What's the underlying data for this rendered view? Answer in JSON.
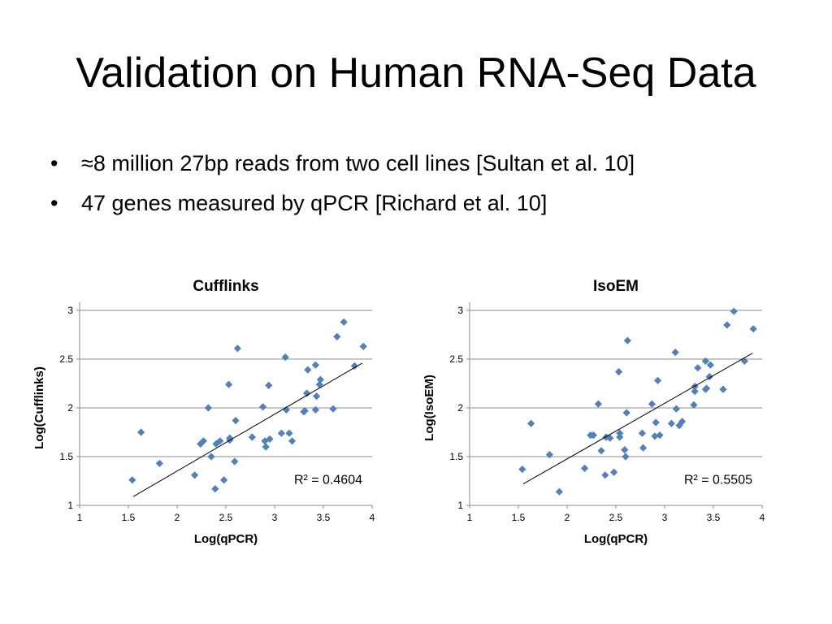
{
  "slide": {
    "title": "Validation on Human RNA-Seq Data",
    "bullets": [
      "≈8 million 27bp reads from two cell lines [Sultan et al. 10]",
      "47 genes measured by qPCR [Richard et al. 10]"
    ]
  },
  "chart_data": [
    {
      "type": "scatter",
      "title": "Cufflinks",
      "xlabel": "Log(qPCR)",
      "ylabel": "Log(Cufflinks)",
      "xlim": [
        1,
        4
      ],
      "ylim": [
        1,
        3
      ],
      "xticks": [
        "1",
        "1.5",
        "2",
        "2.5",
        "3",
        "3.5",
        "4"
      ],
      "yticks": [
        "1",
        "1.5",
        "2",
        "2.5",
        "3"
      ],
      "grid": "horizontal",
      "marker_color": "#4F81BD",
      "r2_label": "R² = 0.4604",
      "trendline": [
        [
          1.55,
          1.09
        ],
        [
          3.9,
          2.46
        ]
      ],
      "points": [
        [
          1.54,
          1.26
        ],
        [
          1.63,
          1.75
        ],
        [
          1.82,
          1.43
        ],
        [
          2.18,
          1.31
        ],
        [
          2.24,
          1.63
        ],
        [
          2.27,
          1.66
        ],
        [
          2.32,
          2.0
        ],
        [
          2.35,
          1.5
        ],
        [
          2.39,
          1.17
        ],
        [
          2.4,
          1.63
        ],
        [
          2.44,
          1.66
        ],
        [
          2.48,
          1.26
        ],
        [
          2.53,
          2.24
        ],
        [
          2.54,
          1.69
        ],
        [
          2.54,
          1.67
        ],
        [
          2.59,
          1.45
        ],
        [
          2.6,
          1.87
        ],
        [
          2.62,
          2.61
        ],
        [
          2.77,
          1.7
        ],
        [
          2.88,
          2.01
        ],
        [
          2.9,
          1.66
        ],
        [
          2.91,
          1.6
        ],
        [
          2.94,
          2.23
        ],
        [
          2.95,
          1.68
        ],
        [
          3.07,
          1.74
        ],
        [
          3.11,
          2.52
        ],
        [
          3.12,
          1.98
        ],
        [
          3.15,
          1.74
        ],
        [
          3.18,
          1.66
        ],
        [
          3.3,
          1.96
        ],
        [
          3.31,
          1.97
        ],
        [
          3.33,
          2.15
        ],
        [
          3.34,
          2.39
        ],
        [
          3.42,
          1.98
        ],
        [
          3.42,
          2.44
        ],
        [
          3.43,
          2.12
        ],
        [
          3.46,
          2.24
        ],
        [
          3.47,
          2.29
        ],
        [
          3.6,
          1.99
        ],
        [
          3.64,
          2.73
        ],
        [
          3.71,
          2.88
        ],
        [
          3.82,
          2.43
        ],
        [
          3.91,
          2.63
        ]
      ]
    },
    {
      "type": "scatter",
      "title": "IsoEM",
      "xlabel": "Log(qPCR)",
      "ylabel": "Log(IsoEM)",
      "xlim": [
        1,
        4
      ],
      "ylim": [
        1,
        3
      ],
      "xticks": [
        "1",
        "1.5",
        "2",
        "2.5",
        "3",
        "3.5",
        "4"
      ],
      "yticks": [
        "1",
        "1.5",
        "2",
        "2.5",
        "3"
      ],
      "grid": "horizontal",
      "marker_color": "#4F81BD",
      "r2_label": "R² = 0.5505",
      "trendline": [
        [
          1.55,
          1.22
        ],
        [
          3.9,
          2.56
        ]
      ],
      "points": [
        [
          1.54,
          1.37
        ],
        [
          1.63,
          1.84
        ],
        [
          1.82,
          1.52
        ],
        [
          1.92,
          1.14
        ],
        [
          2.18,
          1.38
        ],
        [
          2.24,
          1.72
        ],
        [
          2.27,
          1.72
        ],
        [
          2.32,
          2.04
        ],
        [
          2.35,
          1.56
        ],
        [
          2.39,
          1.31
        ],
        [
          2.4,
          1.7
        ],
        [
          2.44,
          1.69
        ],
        [
          2.48,
          1.34
        ],
        [
          2.53,
          2.37
        ],
        [
          2.54,
          1.7
        ],
        [
          2.54,
          1.74
        ],
        [
          2.59,
          1.57
        ],
        [
          2.6,
          1.5
        ],
        [
          2.61,
          1.95
        ],
        [
          2.62,
          2.69
        ],
        [
          2.77,
          1.74
        ],
        [
          2.78,
          1.59
        ],
        [
          2.87,
          2.04
        ],
        [
          2.9,
          1.71
        ],
        [
          2.91,
          1.85
        ],
        [
          2.93,
          2.28
        ],
        [
          2.95,
          1.72
        ],
        [
          3.07,
          1.84
        ],
        [
          3.11,
          2.57
        ],
        [
          3.12,
          1.99
        ],
        [
          3.15,
          1.82
        ],
        [
          3.18,
          1.86
        ],
        [
          3.3,
          2.03
        ],
        [
          3.31,
          2.22
        ],
        [
          3.31,
          2.17
        ],
        [
          3.34,
          2.41
        ],
        [
          3.42,
          2.19
        ],
        [
          3.42,
          2.48
        ],
        [
          3.43,
          2.2
        ],
        [
          3.46,
          2.32
        ],
        [
          3.47,
          2.44
        ],
        [
          3.6,
          2.19
        ],
        [
          3.64,
          2.85
        ],
        [
          3.71,
          2.99
        ],
        [
          3.82,
          2.48
        ],
        [
          3.91,
          2.81
        ]
      ]
    }
  ]
}
